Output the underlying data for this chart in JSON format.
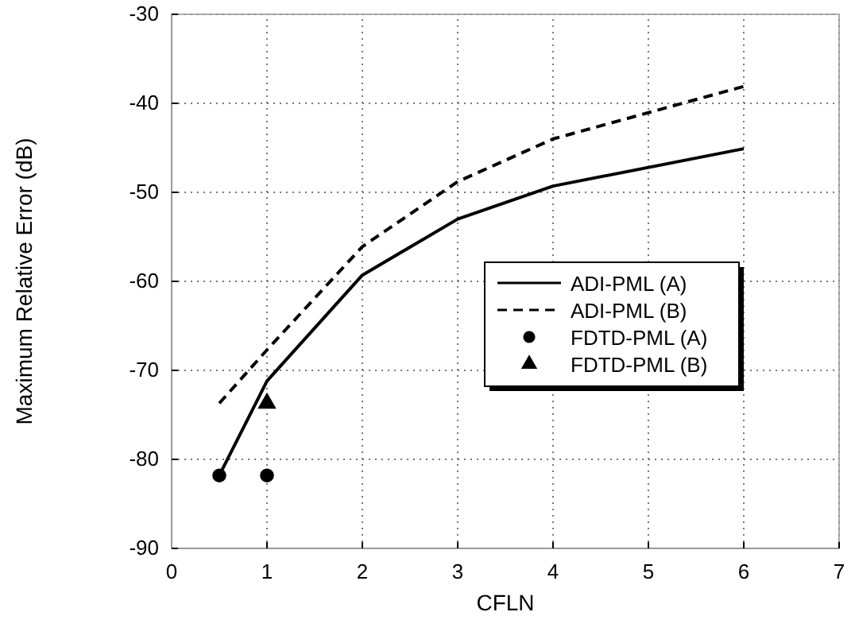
{
  "chart_data": {
    "type": "line",
    "xlabel": "CFLN",
    "ylabel": "Maximum Relative Error (dB)",
    "xlim": [
      0,
      7
    ],
    "xticks": [
      0,
      1,
      2,
      3,
      4,
      5,
      6,
      7
    ],
    "ylim": [
      -90,
      -30
    ],
    "yticks": [
      -90,
      -80,
      -70,
      -60,
      -50,
      -40,
      -30
    ],
    "grid": true,
    "legend": "right",
    "series": [
      {
        "name": "ADI-PML (A)",
        "color": "#000000",
        "line_style": "solid",
        "marker": "none",
        "x": [
          0.5,
          1,
          2,
          3,
          4,
          6
        ],
        "values": [
          -81.8,
          -71.2,
          -59.3,
          -53.0,
          -49.3,
          -45.1
        ]
      },
      {
        "name": "ADI-PML (B)",
        "color": "#000000",
        "line_style": "dashed",
        "marker": "none",
        "x": [
          0.5,
          1,
          2,
          3,
          4,
          6
        ],
        "values": [
          -73.7,
          -67.7,
          -56.1,
          -48.8,
          -44.0,
          -38.1
        ]
      },
      {
        "name": "FDTD-PML (A)",
        "color": "#000000",
        "type": "scatter",
        "marker": "circle",
        "x": [
          0.5,
          1
        ],
        "values": [
          -81.8,
          -81.8
        ]
      },
      {
        "name": "FDTD-PML (B)",
        "color": "#000000",
        "type": "scatter",
        "marker": "triangle",
        "x": [
          1
        ],
        "values": [
          -73.7
        ]
      }
    ]
  }
}
